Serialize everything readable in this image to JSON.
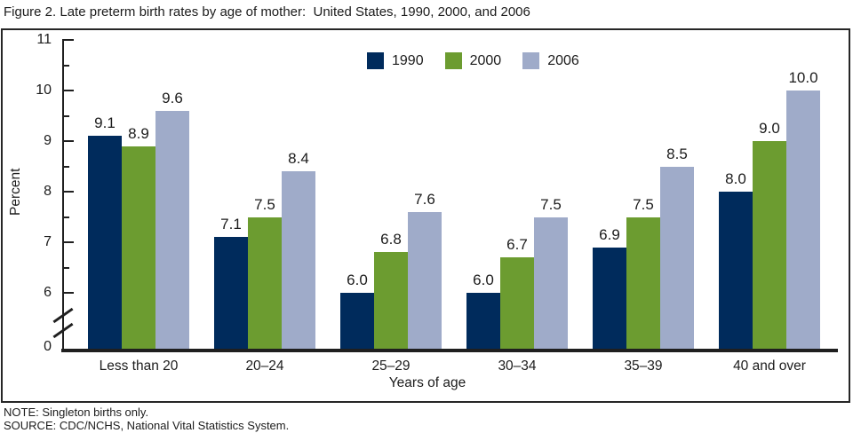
{
  "title": "Figure 2. Late preterm birth rates by age of mother:  United States, 1990, 2000, and 2006",
  "chart_data": {
    "type": "bar",
    "categories": [
      "Less than 20",
      "20–24",
      "25–29",
      "30–34",
      "35–39",
      "40 and over"
    ],
    "series": [
      {
        "name": "1990",
        "color": "#002b5c",
        "values": [
          9.1,
          7.1,
          6.0,
          6.0,
          6.9,
          8.0
        ]
      },
      {
        "name": "2000",
        "color": "#6c9c30",
        "values": [
          8.9,
          7.5,
          6.8,
          6.7,
          7.5,
          9.0
        ]
      },
      {
        "name": "2006",
        "color": "#9fabc9",
        "values": [
          9.6,
          8.4,
          7.6,
          7.5,
          8.5,
          10.0
        ]
      }
    ],
    "title": "Figure 2. Late preterm birth rates by age of mother:  United States, 1990, 2000, and 2006",
    "xlabel": "Years of age",
    "ylabel": "Percent",
    "y_ticks": [
      0,
      6,
      7,
      8,
      9,
      10,
      11
    ],
    "ylim": [
      0,
      11
    ],
    "axis_break_between": [
      0,
      6
    ],
    "value_label_decimals": 1,
    "grid": false,
    "legend_position": "top-center"
  },
  "notes": {
    "note": "NOTE: Singleton births only.",
    "source": "SOURCE: CDC/NCHS, National Vital Statistics System."
  }
}
